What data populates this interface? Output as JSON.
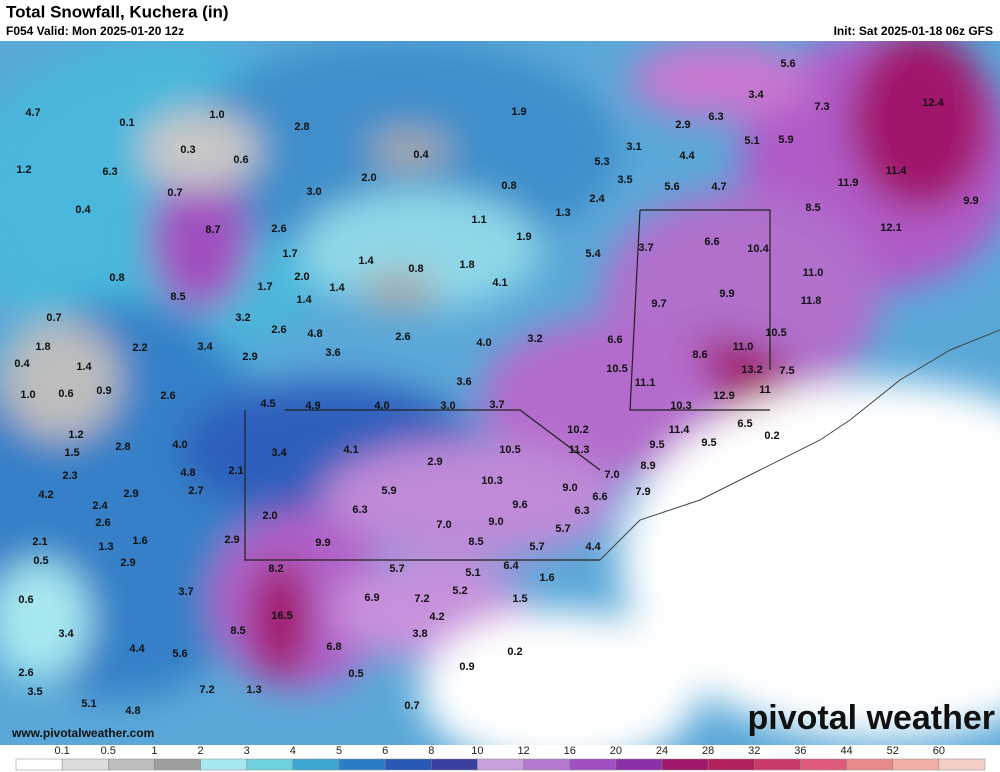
{
  "header": {
    "title": "Total Snowfall, Kuchera (in)",
    "valid": "F054 Valid: Mon 2025-01-20 12z",
    "init": "Init: Sat 2025-01-18 06z GFS"
  },
  "map": {
    "labels": [
      "0.1",
      "1.0",
      "4.7",
      "0.3",
      "0.6",
      "1.2",
      "6.3",
      "0.7",
      "0.4",
      "8.7",
      "2.8",
      "0.4",
      "2.0",
      "3.0",
      "1.9",
      "0.8",
      "1.1",
      "2.9",
      "3.1",
      "5.3",
      "6.3",
      "4.4",
      "5.1",
      "5.9",
      "3.5",
      "5.6",
      "4.7",
      "5.6",
      "3.4",
      "7.3",
      "12.4",
      "11.9",
      "11.4",
      "8.5",
      "9.9",
      "12.1",
      "2.4",
      "1.3",
      "1.9",
      "3.7",
      "6.6",
      "10.4",
      "2.6",
      "1.7",
      "1.4",
      "0.8",
      "1.8",
      "4.1",
      "5.4",
      "0.8",
      "8.5",
      "1.7",
      "2.0",
      "1.4",
      "1.4",
      "11.0",
      "11.8",
      "9.9",
      "9.7",
      "0.7",
      "3.2",
      "2.6",
      "4.8",
      "2.6",
      "4.0",
      "3.2",
      "6.6",
      "10.5",
      "1.8",
      "2.2",
      "3.4",
      "3.6",
      "2.9",
      "8.6",
      "11.0",
      "1.4",
      "0.4",
      "10.5",
      "13.2",
      "7.5",
      "3.6",
      "11.1",
      "1.0",
      "0.6",
      "0.9",
      "2.6",
      "12.9",
      "11",
      "4.5",
      "4.9",
      "4.0",
      "3.0",
      "3.7",
      "10.3",
      "10.2",
      "11.4",
      "6.5",
      "0.2",
      "1.2",
      "4.0",
      "2.8",
      "1.5",
      "4.1",
      "10.5",
      "9.5",
      "9.5",
      "3.4",
      "11.3",
      "2.9",
      "2.1",
      "2.3",
      "4.8",
      "7.0",
      "8.9",
      "10.3",
      "9.0",
      "4.2",
      "2.9",
      "2.7",
      "5.9",
      "6.6",
      "7.9",
      "2.4",
      "9.6",
      "6.3",
      "2.0",
      "2.6",
      "6.3",
      "7.0",
      "9.0",
      "5.7",
      "2.1",
      "1.3",
      "1.6",
      "2.9",
      "9.9",
      "8.5",
      "5.7",
      "4.4",
      "0.5",
      "2.9",
      "8.2",
      "5.7",
      "6.4",
      "5.1",
      "1.6",
      "3.7",
      "6.9",
      "7.2",
      "5.2",
      "1.5",
      "0.6",
      "16.5",
      "4.2",
      "3.4",
      "8.5",
      "3.8",
      "4.4",
      "6.8",
      "5.6",
      "0.2",
      "0.9",
      "2.6",
      "0.5",
      "7.2",
      "1.3",
      "3.5",
      "5.1",
      "0.7",
      "4.8"
    ],
    "watermark": "pivotal weather",
    "website": "www.pivotalweather.com"
  },
  "legend": {
    "levels": [
      "0.1",
      "0.5",
      "1",
      "2",
      "3",
      "4",
      "5",
      "6",
      "8",
      "10",
      "12",
      "16",
      "20",
      "24",
      "28",
      "32",
      "36",
      "44",
      "52",
      "60"
    ],
    "colors": [
      "#ffffff",
      "#dcdcdc",
      "#bdbdbd",
      "#9e9e9e",
      "#a8e8f0",
      "#6fd0e0",
      "#3aa8d0",
      "#2c7cc8",
      "#2958b8",
      "#3a40a0",
      "#c8a0dc",
      "#b478d0",
      "#a050c0",
      "#8c30a8",
      "#a0186c",
      "#b0205c",
      "#c83a6a",
      "#e05a7a",
      "#e88a8c",
      "#f0b0a8",
      "#f5cfc8"
    ]
  }
}
